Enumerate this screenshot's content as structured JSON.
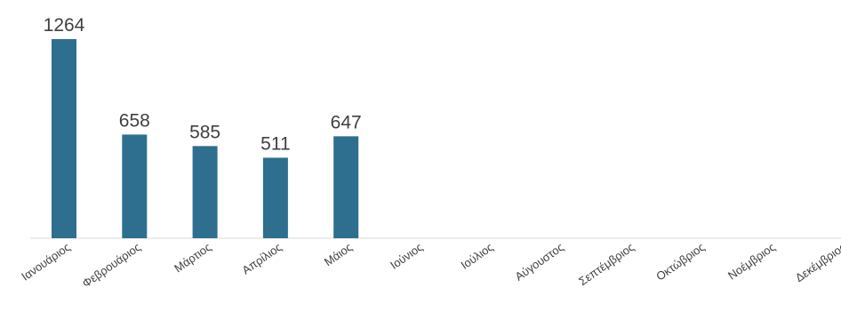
{
  "chart_data": {
    "type": "bar",
    "categories": [
      "Ιανουάριος",
      "Φεβρουάριος",
      "Μάρτιος",
      "Απρίλιος",
      "Μάιος",
      "Ιούνιος",
      "Ιούλιος",
      "Αύγουστος",
      "Σεπτέμβριος",
      "Οκτώβριος",
      "Νοέμβριος",
      "Δεκέμβριος"
    ],
    "values": [
      1264,
      658,
      585,
      511,
      647,
      null,
      null,
      null,
      null,
      null,
      null,
      null
    ],
    "title": "",
    "xlabel": "",
    "ylabel": "",
    "ylim": [
      0,
      1264
    ],
    "grid": false,
    "legend": "none",
    "bar_color": "#2e6e8e",
    "axis_color": "#d9d9d9",
    "label_color": "#404040"
  }
}
